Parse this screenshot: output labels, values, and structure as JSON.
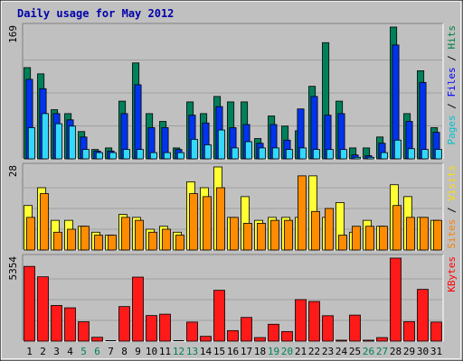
{
  "chart_data": {
    "type": "bar",
    "title": "Daily usage for May 2012",
    "categories": [
      "1",
      "2",
      "3",
      "4",
      "5",
      "6",
      "7",
      "8",
      "9",
      "10",
      "11",
      "12",
      "13",
      "14",
      "15",
      "16",
      "17",
      "18",
      "19",
      "20",
      "21",
      "22",
      "23",
      "24",
      "25",
      "26",
      "27",
      "28",
      "29",
      "30",
      "31"
    ],
    "weekend_days": [
      "5",
      "6",
      "12",
      "13",
      "19",
      "20",
      "26",
      "27"
    ],
    "panels": [
      {
        "id": "hits-files-pages",
        "max_label": "169",
        "ylim": [
          0,
          169
        ],
        "side_labels": [
          {
            "text": "Pages",
            "color": "#00c0d0"
          },
          {
            "text": " / ",
            "color": "#000000"
          },
          {
            "text": "Files",
            "color": "#0000ff"
          },
          {
            "text": " / ",
            "color": "#000000"
          },
          {
            "text": "Hits",
            "color": "#008040"
          }
        ],
        "series": [
          {
            "name": "Hits",
            "color": "#00805a",
            "values": [
              117,
              109,
              63,
              58,
              35,
              12,
              14,
              74,
              123,
              58,
              48,
              14,
              73,
              58,
              80,
              73,
              73,
              26,
              55,
              42,
              36,
              93,
              149,
              74,
              14,
              14,
              28,
              169,
              58,
              113,
              40
            ]
          },
          {
            "name": "Files",
            "color": "#0033ee",
            "values": [
              102,
              90,
              58,
              50,
              28,
              10,
              10,
              58,
              95,
              40,
              40,
              12,
              56,
              46,
              67,
              40,
              44,
              20,
              44,
              24,
              64,
              80,
              56,
              58,
              5,
              4,
              20,
              146,
              48,
              98,
              34
            ]
          },
          {
            "name": "Pages",
            "color": "#33d8ff",
            "values": [
              40,
              58,
              45,
              42,
              12,
              8,
              8,
              12,
              12,
              8,
              8,
              8,
              25,
              18,
              37,
              14,
              22,
              14,
              14,
              12,
              14,
              12,
              12,
              12,
              2,
              2,
              8,
              24,
              13,
              12,
              12
            ]
          }
        ]
      },
      {
        "id": "visits-sites",
        "max_label": "28",
        "ylim": [
          0,
          28
        ],
        "side_labels": [
          {
            "text": "Sites",
            "color": "#ff8000"
          },
          {
            "text": " / ",
            "color": "#000000"
          },
          {
            "text": "Visits",
            "color": "#ffdd00"
          }
        ],
        "series": [
          {
            "name": "Visits",
            "color": "#ffff33",
            "values": [
              15,
              21,
              10,
              10,
              8,
              6,
              5,
              12,
              11,
              7,
              8,
              6,
              23,
              21,
              28,
              11,
              18,
              10,
              11,
              11,
              11,
              25,
              11,
              16,
              6,
              10,
              8,
              22,
              18,
              11,
              10
            ]
          },
          {
            "name": "Sites",
            "color": "#ff8c00",
            "values": [
              11,
              19,
              6,
              7,
              8,
              5,
              5,
              11,
              10,
              6,
              7,
              5,
              19,
              18,
              21,
              11,
              9,
              9,
              10,
              10,
              25,
              13,
              14,
              5,
              8,
              8,
              8,
              15,
              11,
              11,
              10
            ]
          }
        ]
      },
      {
        "id": "kbytes",
        "max_label": "5354",
        "ylim": [
          0,
          5354
        ],
        "side_labels": [
          {
            "text": "KBytes",
            "color": "#ff0000"
          }
        ],
        "series": [
          {
            "name": "KBytes",
            "color": "#ff1a1a",
            "values": [
              4820,
              4150,
              2300,
              2150,
              1250,
              250,
              0,
              2230,
              4130,
              1650,
              1740,
              0,
              1230,
              310,
              3280,
              680,
              1530,
              230,
              1090,
              620,
              2680,
              2560,
              1640,
              60,
              1680,
              60,
              230,
              5354,
              1260,
              3340,
              1230
            ]
          }
        ]
      }
    ]
  }
}
